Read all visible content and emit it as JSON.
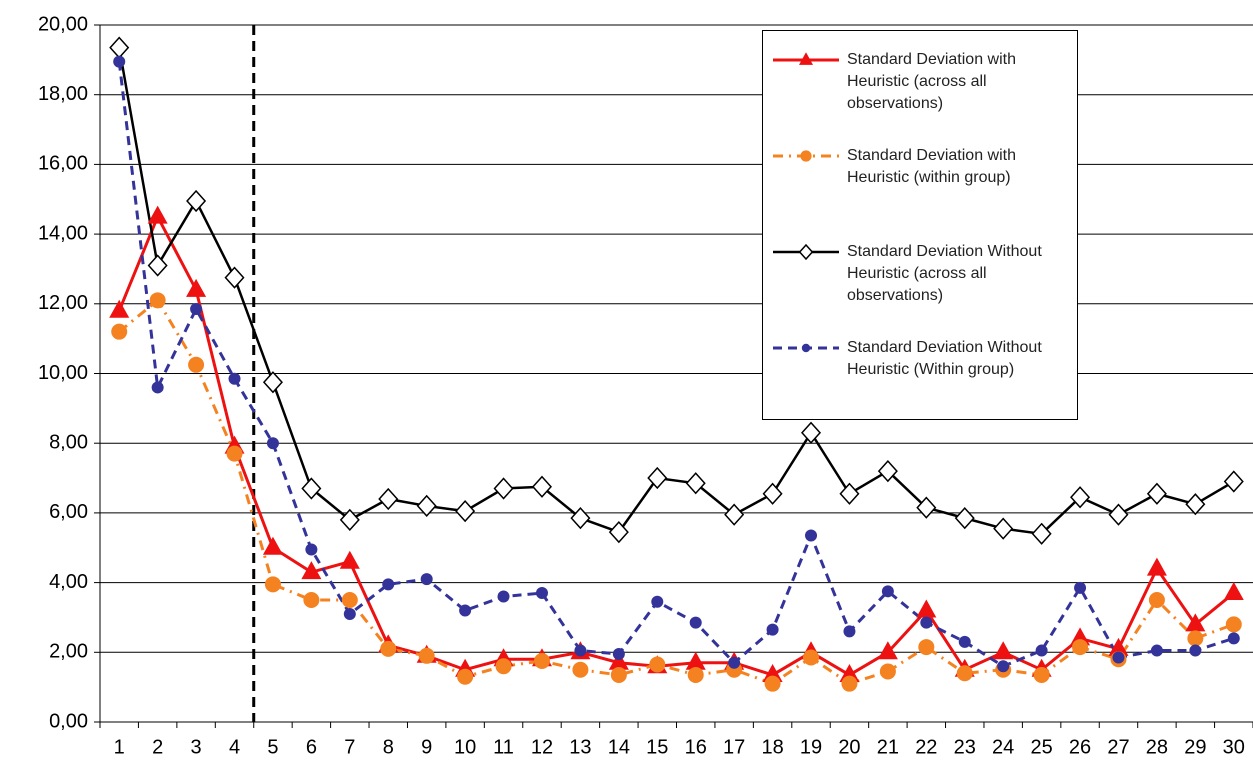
{
  "chart_data": {
    "type": "line",
    "categories": [
      "1",
      "2",
      "3",
      "4",
      "5",
      "6",
      "7",
      "8",
      "9",
      "10",
      "11",
      "12",
      "13",
      "14",
      "15",
      "16",
      "17",
      "18",
      "19",
      "20",
      "21",
      "22",
      "23",
      "24",
      "25",
      "26",
      "27",
      "28",
      "29",
      "30"
    ],
    "series": [
      {
        "name": "Standard Deviation with Heuristic (across all observations)",
        "color": "#ee1111",
        "marker": "triangle",
        "dash": "solid",
        "values": [
          11.8,
          14.5,
          12.4,
          7.9,
          5.0,
          4.3,
          4.6,
          2.2,
          1.9,
          1.5,
          1.8,
          1.8,
          2.0,
          1.7,
          1.6,
          1.7,
          1.7,
          1.35,
          2.0,
          1.35,
          2.0,
          3.2,
          1.5,
          2.0,
          1.5,
          2.4,
          2.1,
          4.4,
          2.8,
          3.7
        ]
      },
      {
        "name": "Standard Deviation with Heuristic (within group)",
        "color": "#f58220",
        "marker": "circle",
        "dash": "dashdot",
        "values": [
          11.2,
          12.1,
          10.25,
          7.7,
          3.95,
          3.5,
          3.5,
          2.1,
          1.9,
          1.3,
          1.6,
          1.75,
          1.5,
          1.35,
          1.65,
          1.35,
          1.5,
          1.1,
          1.85,
          1.1,
          1.45,
          2.15,
          1.4,
          1.5,
          1.35,
          2.15,
          1.8,
          3.5,
          2.4,
          2.8
        ]
      },
      {
        "name": "Standard Deviation Without Heuristic (across all observations)",
        "color": "#000000",
        "marker": "diamond",
        "dash": "solid",
        "values": [
          19.35,
          13.1,
          14.95,
          12.75,
          9.75,
          6.7,
          5.8,
          6.4,
          6.2,
          6.05,
          6.7,
          6.75,
          5.85,
          5.45,
          7.0,
          6.85,
          5.95,
          6.55,
          8.3,
          6.55,
          7.2,
          6.15,
          5.85,
          5.55,
          5.4,
          6.45,
          5.95,
          6.55,
          6.25,
          6.9
        ]
      },
      {
        "name": "Standard Deviation Without Heuristic (Within group)",
        "color": "#333399",
        "marker": "dot",
        "dash": "dashed",
        "values": [
          18.95,
          9.6,
          11.85,
          9.85,
          8.0,
          4.95,
          3.1,
          3.95,
          4.1,
          3.2,
          3.6,
          3.7,
          2.05,
          1.95,
          3.45,
          2.85,
          1.7,
          2.65,
          5.35,
          2.6,
          3.75,
          2.85,
          2.3,
          1.6,
          2.05,
          3.85,
          1.85,
          2.05,
          2.05,
          2.4
        ]
      }
    ],
    "ylim": [
      0,
      20
    ],
    "yticks": [
      {
        "value": 0,
        "label": "0,00"
      },
      {
        "value": 2,
        "label": "2,00"
      },
      {
        "value": 4,
        "label": "4,00"
      },
      {
        "value": 6,
        "label": "6,00"
      },
      {
        "value": 8,
        "label": "8,00"
      },
      {
        "value": 10,
        "label": "10,00"
      },
      {
        "value": 12,
        "label": "12,00"
      },
      {
        "value": 14,
        "label": "14,00"
      },
      {
        "value": 16,
        "label": "16,00"
      },
      {
        "value": 18,
        "label": "18,00"
      },
      {
        "value": 20,
        "label": "20,00"
      }
    ],
    "grid": true,
    "vline": 4.5,
    "legend": "upper right"
  }
}
